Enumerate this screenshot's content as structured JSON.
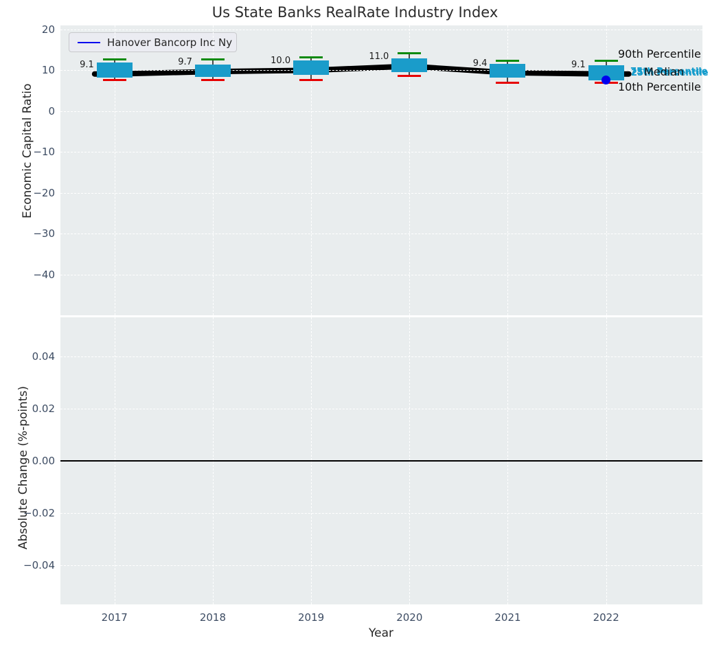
{
  "title": "Us State Banks RealRate Industry Index",
  "legend": {
    "label": "Hanover Bancorp Inc Ny",
    "line_color": "#0000ee"
  },
  "top_axis": {
    "ylabel": "Economic Capital Ratio",
    "ticks": [
      {
        "label": "20",
        "value": 20
      },
      {
        "label": "10",
        "value": 10
      },
      {
        "label": "0",
        "value": 0
      },
      {
        "label": "−10",
        "value": -10
      },
      {
        "label": "−20",
        "value": -20
      },
      {
        "label": "−30",
        "value": -30
      },
      {
        "label": "−40",
        "value": -40
      }
    ]
  },
  "bottom_axis": {
    "ylabel": "Absolute Change (%-points)",
    "ticks": [
      {
        "label": "0.04",
        "value": 0.04
      },
      {
        "label": "0.02",
        "value": 0.02
      },
      {
        "label": "0.00",
        "value": 0.0
      },
      {
        "label": "−0.02",
        "value": -0.02
      },
      {
        "label": "−0.04",
        "value": -0.04
      }
    ]
  },
  "x_axis": {
    "label": "Year",
    "ticks": [
      {
        "label": "2017",
        "value": 2017
      },
      {
        "label": "2018",
        "value": 2018
      },
      {
        "label": "2019",
        "value": 2019
      },
      {
        "label": "2020",
        "value": 2020
      },
      {
        "label": "2021",
        "value": 2021
      },
      {
        "label": "2022",
        "value": 2022
      }
    ]
  },
  "right_labels": {
    "p90": "90th Percentile",
    "median": "Median",
    "p75": "75th Percentile",
    "p25": "25th Percentile",
    "p10": "10th Percentile"
  },
  "colors": {
    "box_fill": "#1a9cca",
    "p90_cap": "#0c8a0c",
    "p10_cap": "#e60000",
    "whisker": "#4a4a4a",
    "median_line": "#000000",
    "company": "#0000ee",
    "axes_bg": "#e9edee",
    "grid": "#ffffff",
    "tick_label": "#3d4c63",
    "cyan_label": "#149ccc",
    "zero_line": "#000000"
  },
  "chart_data": [
    {
      "type": "line",
      "title": "Us State Banks RealRate Industry Index",
      "xlabel": "Year",
      "ylabel": "Economic Capital Ratio",
      "x": [
        2017,
        2018,
        2019,
        2020,
        2021,
        2022
      ],
      "xlim": [
        2016.45,
        2022.98
      ],
      "ylim": [
        -50,
        21
      ],
      "grid": true,
      "legend_position": "upper left",
      "series": [
        {
          "name": "Industry Median",
          "values": [
            9.1,
            9.7,
            10.0,
            11.0,
            9.4,
            9.1
          ]
        }
      ],
      "median_labels": [
        "9.1",
        "9.7",
        "10.0",
        "11.0",
        "9.4",
        "9.1"
      ],
      "boxes": [
        {
          "year": 2017,
          "p90": 12.6,
          "q3": 11.9,
          "median": 9.1,
          "q1": 8.2,
          "p10": 7.7
        },
        {
          "year": 2018,
          "p90": 12.6,
          "q3": 11.4,
          "median": 9.7,
          "q1": 8.3,
          "p10": 7.7
        },
        {
          "year": 2019,
          "p90": 13.1,
          "q3": 12.4,
          "median": 10.0,
          "q1": 8.9,
          "p10": 7.7
        },
        {
          "year": 2020,
          "p90": 14.2,
          "q3": 12.9,
          "median": 11.0,
          "q1": 9.6,
          "p10": 8.6
        },
        {
          "year": 2021,
          "p90": 12.3,
          "q3": 11.6,
          "median": 9.4,
          "q1": 8.2,
          "p10": 6.9
        },
        {
          "year": 2022,
          "p90": 12.4,
          "q3": 11.2,
          "median": 9.1,
          "q1": 7.6,
          "p10": 6.9
        }
      ],
      "company_points": [
        {
          "name": "Hanover Bancorp Inc Ny",
          "year": 2022,
          "value": 7.6
        }
      ],
      "annotations": [
        "90th Percentile",
        "Median",
        "75th Percentile",
        "25th Percentile",
        "10th Percentile"
      ]
    },
    {
      "type": "line",
      "xlabel": "Year",
      "ylabel": "Absolute Change (%-points)",
      "x": [
        2017,
        2018,
        2019,
        2020,
        2021,
        2022
      ],
      "xlim": [
        2016.45,
        2022.98
      ],
      "ylim": [
        -0.055,
        0.055
      ],
      "grid": true,
      "series": [],
      "zero_line": 0.0
    }
  ]
}
